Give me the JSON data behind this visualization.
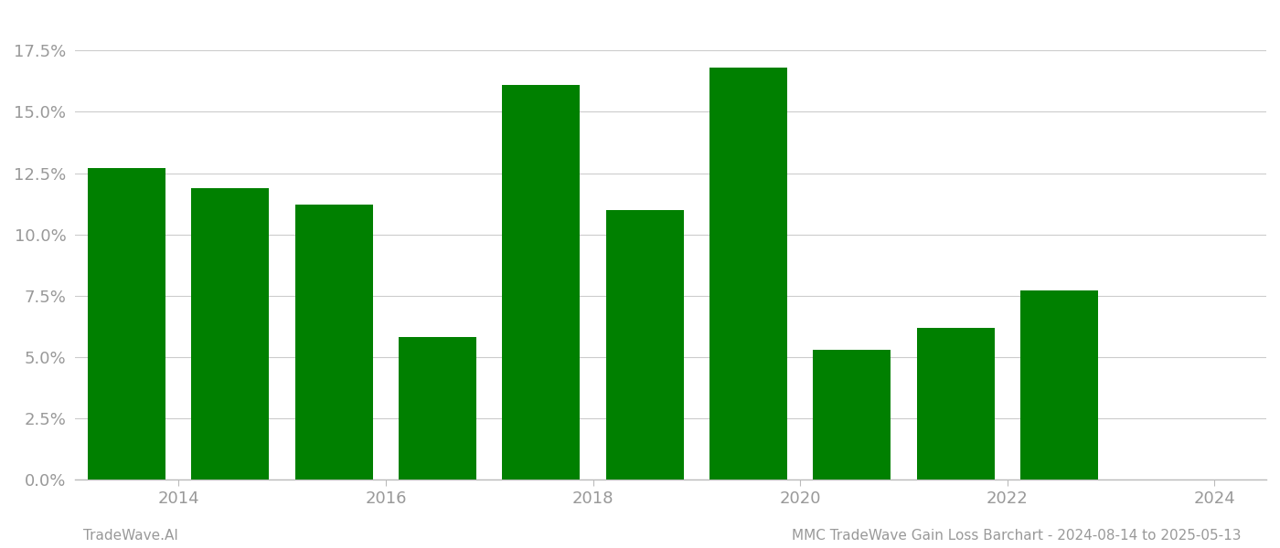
{
  "bar_positions": [
    2013.5,
    2014.5,
    2015.5,
    2016.5,
    2017.5,
    2018.5,
    2019.5,
    2020.5,
    2021.5,
    2022.5,
    2023.5
  ],
  "values": [
    0.127,
    0.119,
    0.112,
    0.058,
    0.161,
    0.11,
    0.168,
    0.053,
    0.062,
    0.077,
    0.0
  ],
  "bar_color": "#008000",
  "background_color": "#ffffff",
  "grid_color": "#cccccc",
  "axis_label_color": "#999999",
  "ylim": [
    0.0,
    0.19
  ],
  "yticks": [
    0.0,
    0.025,
    0.05,
    0.075,
    0.1,
    0.125,
    0.15,
    0.175
  ],
  "xtick_positions": [
    2014,
    2016,
    2018,
    2020,
    2022,
    2024
  ],
  "xtick_labels": [
    "2014",
    "2016",
    "2018",
    "2020",
    "2022",
    "2024"
  ],
  "xlim": [
    2013.0,
    2024.5
  ],
  "footer_left": "TradeWave.AI",
  "footer_right": "MMC TradeWave Gain Loss Barchart - 2024-08-14 to 2025-05-13",
  "bar_width": 0.75,
  "font_size_ticks": 13,
  "font_size_footer": 11
}
